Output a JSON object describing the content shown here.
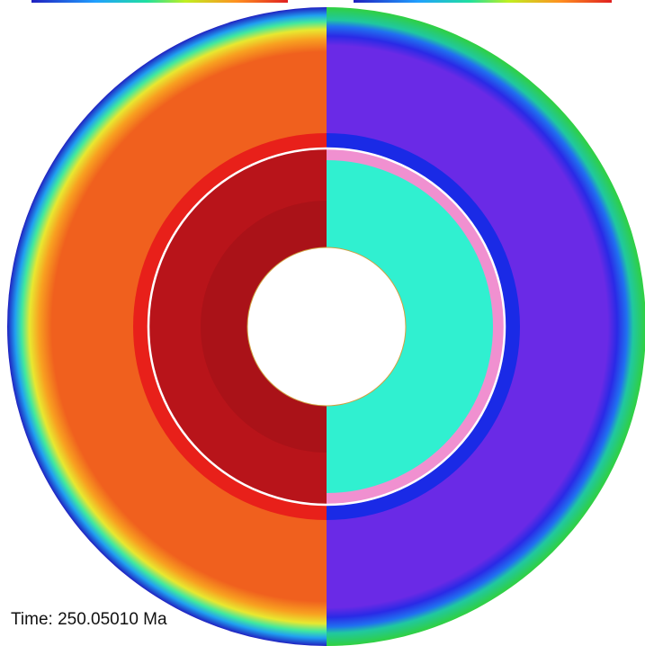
{
  "time_label": "Time: 250.05010 Ma"
}
